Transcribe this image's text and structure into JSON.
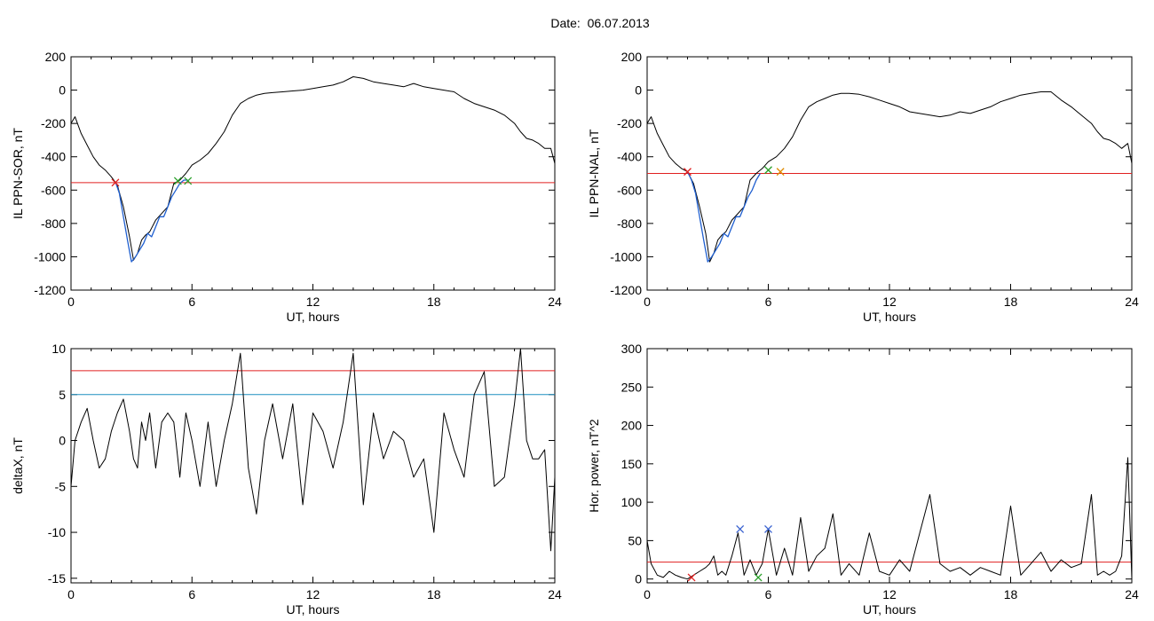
{
  "figure": {
    "title": "Date:  06.07.2013",
    "colors": {
      "trace": "#000000",
      "substorm": "#1f5fd0",
      "threshold": "#e02020",
      "secondary_threshold": "#1f8fc0",
      "marker_red": "#e02020",
      "marker_green": "#2aa02a",
      "marker_blue": "#3a62d0",
      "marker_orange": "#e08a00"
    }
  },
  "chart_data": [
    {
      "id": "ppn-sor",
      "type": "line",
      "ylabel": "IL PPN-SOR, nT",
      "xlabel": "UT, hours",
      "xlim": [
        0,
        24
      ],
      "ylim": [
        -1200,
        200
      ],
      "xticks": [
        "0",
        "6",
        "12",
        "18",
        "24"
      ],
      "yticks": [
        "200",
        "0",
        "-200",
        "-400",
        "-600",
        "-800",
        "-1000",
        "-1200"
      ],
      "series": [
        {
          "color": "#000000",
          "x": [
            0,
            0.2,
            0.5,
            0.8,
            1.1,
            1.4,
            1.7,
            2.0,
            2.3,
            2.6,
            2.9,
            3.1,
            3.3,
            3.5,
            3.7,
            3.9,
            4.2,
            4.5,
            4.8,
            5.1,
            5.4,
            5.7,
            6.0,
            6.4,
            6.8,
            7.2,
            7.6,
            8.0,
            8.4,
            8.8,
            9.2,
            9.6,
            10.0,
            10.5,
            11.0,
            11.5,
            12.0,
            12.5,
            13.0,
            13.5,
            14.0,
            14.5,
            15.0,
            15.5,
            16.0,
            16.5,
            17.0,
            17.5,
            18.0,
            18.5,
            19.0,
            19.5,
            20.0,
            20.5,
            21.0,
            21.5,
            22.0,
            22.3,
            22.6,
            22.9,
            23.2,
            23.5,
            23.8,
            24.0
          ],
          "y": [
            -200,
            -160,
            -260,
            -330,
            -400,
            -450,
            -480,
            -520,
            -570,
            -700,
            -880,
            -1020,
            -980,
            -900,
            -870,
            -850,
            -780,
            -740,
            -700,
            -560,
            -540,
            -500,
            -450,
            -420,
            -380,
            -320,
            -250,
            -150,
            -80,
            -50,
            -30,
            -20,
            -15,
            -10,
            -5,
            0,
            10,
            20,
            30,
            50,
            80,
            70,
            50,
            40,
            30,
            20,
            40,
            20,
            10,
            0,
            -10,
            -50,
            -80,
            -100,
            -120,
            -150,
            -200,
            -250,
            -290,
            -300,
            -320,
            -350,
            -350,
            -440
          ]
        },
        {
          "color": "#1f5fd0",
          "x": [
            2.2,
            2.4,
            2.6,
            2.8,
            3.0,
            3.2,
            3.4,
            3.6,
            3.8,
            4.0,
            4.2,
            4.4,
            4.6,
            4.8,
            5.0,
            5.2,
            5.4,
            5.6,
            5.8
          ],
          "y": [
            -550,
            -620,
            -760,
            -900,
            -1030,
            -1000,
            -960,
            -920,
            -860,
            -880,
            -820,
            -760,
            -760,
            -700,
            -640,
            -600,
            -560,
            -540,
            -540
          ]
        }
      ],
      "thresholds": [
        {
          "value": -555,
          "color": "#e02020"
        }
      ],
      "markers": [
        {
          "x": 2.2,
          "y": -555,
          "color": "#e02020"
        },
        {
          "x": 5.3,
          "y": -545,
          "color": "#2aa02a"
        },
        {
          "x": 5.8,
          "y": -545,
          "color": "#2aa02a"
        }
      ]
    },
    {
      "id": "ppn-nal",
      "type": "line",
      "ylabel": "IL PPN-NAL, nT",
      "xlabel": "UT, hours",
      "xlim": [
        0,
        24
      ],
      "ylim": [
        -1200,
        200
      ],
      "xticks": [
        "0",
        "6",
        "12",
        "18",
        "24"
      ],
      "yticks": [
        "200",
        "0",
        "-200",
        "-400",
        "-600",
        "-800",
        "-1000",
        "-1200"
      ],
      "series": [
        {
          "color": "#000000",
          "x": [
            0,
            0.2,
            0.5,
            0.8,
            1.1,
            1.4,
            1.7,
            2.0,
            2.3,
            2.6,
            2.9,
            3.1,
            3.3,
            3.5,
            3.7,
            3.9,
            4.2,
            4.5,
            4.8,
            5.1,
            5.4,
            5.7,
            6.0,
            6.4,
            6.8,
            7.2,
            7.6,
            8.0,
            8.4,
            8.8,
            9.2,
            9.6,
            10.0,
            10.5,
            11.0,
            11.5,
            12.0,
            12.5,
            13.0,
            13.5,
            14.0,
            14.5,
            15.0,
            15.5,
            16.0,
            16.5,
            17.0,
            17.5,
            18.0,
            18.5,
            19.0,
            19.5,
            20.0,
            20.5,
            21.0,
            21.5,
            22.0,
            22.3,
            22.6,
            22.9,
            23.2,
            23.5,
            23.8,
            24.0
          ],
          "y": [
            -200,
            -160,
            -260,
            -330,
            -400,
            -440,
            -470,
            -490,
            -560,
            -700,
            -860,
            -1030,
            -980,
            -900,
            -870,
            -850,
            -780,
            -740,
            -700,
            -540,
            -500,
            -470,
            -430,
            -400,
            -350,
            -280,
            -180,
            -100,
            -70,
            -50,
            -30,
            -20,
            -20,
            -25,
            -40,
            -60,
            -80,
            -100,
            -130,
            -140,
            -150,
            -160,
            -150,
            -130,
            -140,
            -120,
            -100,
            -70,
            -50,
            -30,
            -20,
            -10,
            -10,
            -60,
            -100,
            -150,
            -200,
            -250,
            -290,
            -300,
            -320,
            -350,
            -320,
            -440
          ]
        },
        {
          "color": "#1f5fd0",
          "x": [
            2.0,
            2.2,
            2.4,
            2.6,
            2.8,
            3.0,
            3.2,
            3.4,
            3.6,
            3.8,
            4.0,
            4.2,
            4.4,
            4.6,
            4.8,
            5.0,
            5.2,
            5.4,
            5.6
          ],
          "y": [
            -490,
            -540,
            -620,
            -760,
            -900,
            -1030,
            -1000,
            -960,
            -920,
            -860,
            -880,
            -820,
            -760,
            -760,
            -700,
            -640,
            -600,
            -540,
            -500
          ]
        }
      ],
      "thresholds": [
        {
          "value": -500,
          "color": "#e02020"
        }
      ],
      "markers": [
        {
          "x": 2.0,
          "y": -490,
          "color": "#e02020"
        },
        {
          "x": 6.0,
          "y": -480,
          "color": "#2aa02a"
        },
        {
          "x": 6.6,
          "y": -490,
          "color": "#e08a00"
        }
      ]
    },
    {
      "id": "deltax",
      "type": "line",
      "ylabel": "deltaX, nT",
      "xlabel": "UT, hours",
      "xlim": [
        0,
        24
      ],
      "ylim": [
        -15.5,
        10
      ],
      "xticks": [
        "0",
        "6",
        "12",
        "18",
        "24"
      ],
      "ytick_values": [
        10,
        5,
        0,
        -5,
        -10,
        -15
      ],
      "yticks": [
        "10",
        "5",
        "0",
        "-5",
        "-10",
        "-15"
      ],
      "series": [
        {
          "color": "#000000",
          "x": [
            0,
            0.2,
            0.5,
            0.8,
            1.1,
            1.4,
            1.7,
            2.0,
            2.3,
            2.6,
            2.9,
            3.1,
            3.3,
            3.5,
            3.7,
            3.9,
            4.2,
            4.5,
            4.8,
            5.1,
            5.4,
            5.7,
            6.0,
            6.4,
            6.8,
            7.2,
            7.6,
            8.0,
            8.4,
            8.8,
            9.2,
            9.6,
            10.0,
            10.5,
            11.0,
            11.5,
            12.0,
            12.5,
            13.0,
            13.5,
            14.0,
            14.5,
            15.0,
            15.5,
            16.0,
            16.5,
            17.0,
            17.5,
            18.0,
            18.5,
            19.0,
            19.5,
            20.0,
            20.5,
            21.0,
            21.5,
            22.0,
            22.3,
            22.6,
            22.9,
            23.2,
            23.5,
            23.8,
            24.0
          ],
          "y": [
            -5,
            0,
            2,
            3.5,
            0,
            -3,
            -2,
            1,
            3,
            4.5,
            1,
            -2,
            -3,
            2,
            0,
            3,
            -3,
            2,
            3,
            2,
            -4,
            3,
            0,
            -5,
            2,
            -5,
            0,
            4,
            9.5,
            -3,
            -8,
            0,
            4,
            -2,
            4,
            -7,
            3,
            1,
            -3,
            2,
            9.5,
            -7,
            3,
            -2,
            1,
            0,
            -4,
            -2,
            -10,
            3,
            -1,
            -4,
            5,
            7.5,
            -5,
            -4,
            4,
            10,
            0,
            -2,
            -2,
            -1,
            -12,
            -4
          ]
        }
      ],
      "thresholds": [
        {
          "value": 7.6,
          "color": "#e02020"
        },
        {
          "value": 5,
          "color": "#1f8fc0"
        }
      ],
      "markers": []
    },
    {
      "id": "hor-power",
      "type": "line",
      "ylabel": "Hor. power, nT^2",
      "xlabel": "UT, hours",
      "xlim": [
        0,
        24
      ],
      "ylim": [
        -5,
        300
      ],
      "xticks": [
        "0",
        "6",
        "12",
        "18",
        "24"
      ],
      "ytick_values": [
        300,
        250,
        200,
        150,
        100,
        50,
        0
      ],
      "yticks": [
        "300",
        "250",
        "200",
        "150",
        "100",
        "50",
        "0"
      ],
      "series": [
        {
          "color": "#000000",
          "x": [
            0,
            0.2,
            0.5,
            0.8,
            1.1,
            1.4,
            1.7,
            2.0,
            2.3,
            2.6,
            2.9,
            3.1,
            3.3,
            3.5,
            3.7,
            3.9,
            4.2,
            4.5,
            4.8,
            5.1,
            5.4,
            5.7,
            6.0,
            6.4,
            6.8,
            7.2,
            7.6,
            8.0,
            8.4,
            8.8,
            9.2,
            9.6,
            10.0,
            10.5,
            11.0,
            11.5,
            12.0,
            12.5,
            13.0,
            13.5,
            14.0,
            14.5,
            15.0,
            15.5,
            16.0,
            16.5,
            17.0,
            17.5,
            18.0,
            18.5,
            19.0,
            19.5,
            20.0,
            20.5,
            21.0,
            21.5,
            22.0,
            22.3,
            22.6,
            22.9,
            23.2,
            23.5,
            23.8,
            24.0
          ],
          "y": [
            50,
            20,
            5,
            2,
            10,
            5,
            2,
            0,
            5,
            10,
            15,
            20,
            30,
            5,
            10,
            5,
            30,
            60,
            5,
            25,
            5,
            20,
            65,
            5,
            40,
            5,
            80,
            10,
            30,
            40,
            85,
            5,
            20,
            5,
            60,
            10,
            5,
            25,
            10,
            60,
            110,
            20,
            10,
            15,
            5,
            15,
            10,
            5,
            95,
            5,
            20,
            35,
            10,
            25,
            15,
            20,
            110,
            5,
            10,
            5,
            10,
            30,
            158,
            0
          ]
        }
      ],
      "thresholds": [
        {
          "value": 22,
          "color": "#e02020"
        }
      ],
      "markers": [
        {
          "x": 4.6,
          "y": 65,
          "color": "#3a62d0"
        },
        {
          "x": 6.0,
          "y": 65,
          "color": "#3a62d0"
        },
        {
          "x": 2.2,
          "y": 2,
          "color": "#e02020"
        },
        {
          "x": 5.5,
          "y": 2,
          "color": "#2aa02a"
        }
      ]
    }
  ]
}
